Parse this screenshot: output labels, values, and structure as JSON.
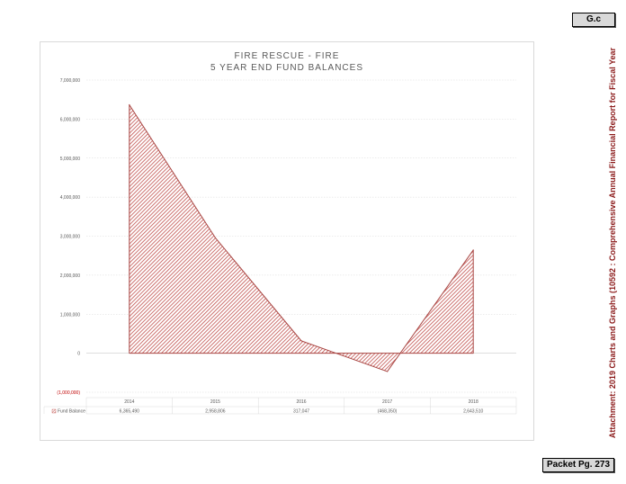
{
  "badge_top": "G.c",
  "badge_bottom": "Packet Pg. 273",
  "side_text": "Attachment: 2019 Charts and Graphs  (10592 : Comprehensive Annual Financial Report for Fiscal Year",
  "chart_data": {
    "type": "area",
    "title": "FIRE RESCUE - FIRE",
    "subtitle": "5 YEAR END FUND BALANCES",
    "categories": [
      "2014",
      "2015",
      "2016",
      "2017",
      "2018"
    ],
    "series": [
      {
        "name": "Fund Balance",
        "values": [
          6365490,
          2958806,
          317047,
          -468350,
          2643510
        ],
        "labels": [
          "6,365,490",
          "2,958,806",
          "317,047",
          "(468,350)",
          "2,643,510"
        ],
        "color": "#c0504d"
      }
    ],
    "ylim": [
      -1000000,
      7000000
    ],
    "ytick_values": [
      7000000,
      6000000,
      5000000,
      4000000,
      3000000,
      2000000,
      1000000,
      0,
      -1000000
    ],
    "ytick_labels": [
      "7,000,000",
      "6,000,000",
      "5,000,000",
      "4,000,000",
      "3,000,000",
      "2,000,000",
      "1,000,000",
      "0",
      "(1,000,000)"
    ],
    "grid": true,
    "legend": "data-table"
  }
}
